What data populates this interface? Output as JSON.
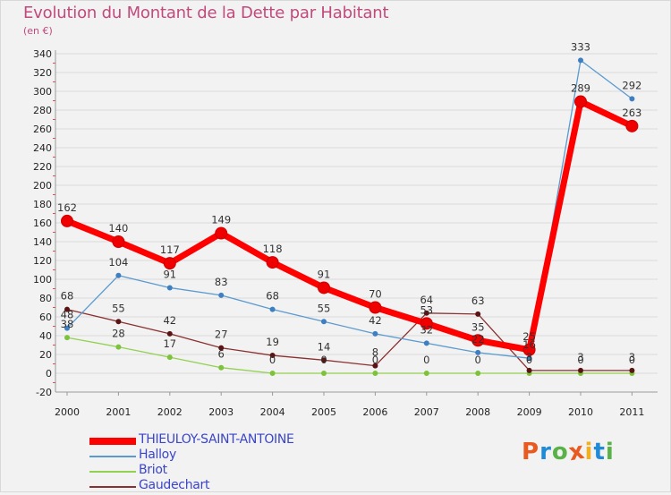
{
  "header": {
    "title": "Evolution du Montant de la Dette par Habitant",
    "subtitle": "(en €)"
  },
  "logo": {
    "text": "Proxiti",
    "letters": [
      "P",
      "r",
      "o",
      "x",
      "i",
      "t",
      "i"
    ],
    "colors": [
      "#e85a1f",
      "#1f8ad8",
      "#59b247",
      "#e85a1f",
      "#f0b020",
      "#1f8ad8",
      "#59b247"
    ]
  },
  "chart_data": {
    "type": "line",
    "title": "Evolution du Montant de la Dette par Habitant",
    "subtitle": "(en €)",
    "xlabel": "",
    "ylabel": "",
    "x": [
      "2000",
      "2001",
      "2002",
      "2003",
      "2004",
      "2005",
      "2006",
      "2007",
      "2008",
      "2009",
      "2010",
      "2011"
    ],
    "ylim": [
      -20,
      340
    ],
    "yticks": [
      -20,
      0,
      20,
      40,
      60,
      80,
      100,
      120,
      140,
      160,
      180,
      200,
      220,
      240,
      260,
      280,
      300,
      320,
      340
    ],
    "grid": "horizontal",
    "legend_position": "bottom-left",
    "series": [
      {
        "name": "THIEULOY-SAINT-ANTOINE",
        "color": "#ee0000",
        "values": [
          162,
          140,
          117,
          149,
          118,
          91,
          70,
          53,
          35,
          25,
          289,
          263
        ],
        "labels": [
          "162",
          "140",
          "117",
          "149",
          "118",
          "91",
          "70",
          "53",
          "35",
          "25",
          "289",
          "263"
        ]
      },
      {
        "name": "Halloy",
        "color": "#4a90c8",
        "values": [
          48,
          104,
          91,
          83,
          68,
          55,
          42,
          32,
          22,
          16,
          333,
          292
        ],
        "labels": [
          "48",
          "104",
          "91",
          "83",
          "68",
          "55",
          "42",
          "32",
          "22",
          "16",
          "333",
          "292"
        ]
      },
      {
        "name": "Briot",
        "color": "#8ccc44",
        "values": [
          38,
          28,
          17,
          6,
          0,
          0,
          0,
          0,
          0,
          0,
          0,
          0
        ],
        "labels": [
          "38",
          "28",
          "17",
          "6",
          "0",
          "0",
          "0",
          "0",
          "0",
          "0",
          "0",
          "0"
        ]
      },
      {
        "name": "Gaudechart",
        "color": "#6a1a1a",
        "values": [
          68,
          55,
          42,
          27,
          19,
          14,
          8,
          64,
          63,
          3,
          3,
          3
        ],
        "labels": [
          "68",
          "55",
          "42",
          "27",
          "19",
          "14",
          "8",
          "64",
          "63",
          "3",
          "3",
          "3"
        ]
      }
    ]
  }
}
